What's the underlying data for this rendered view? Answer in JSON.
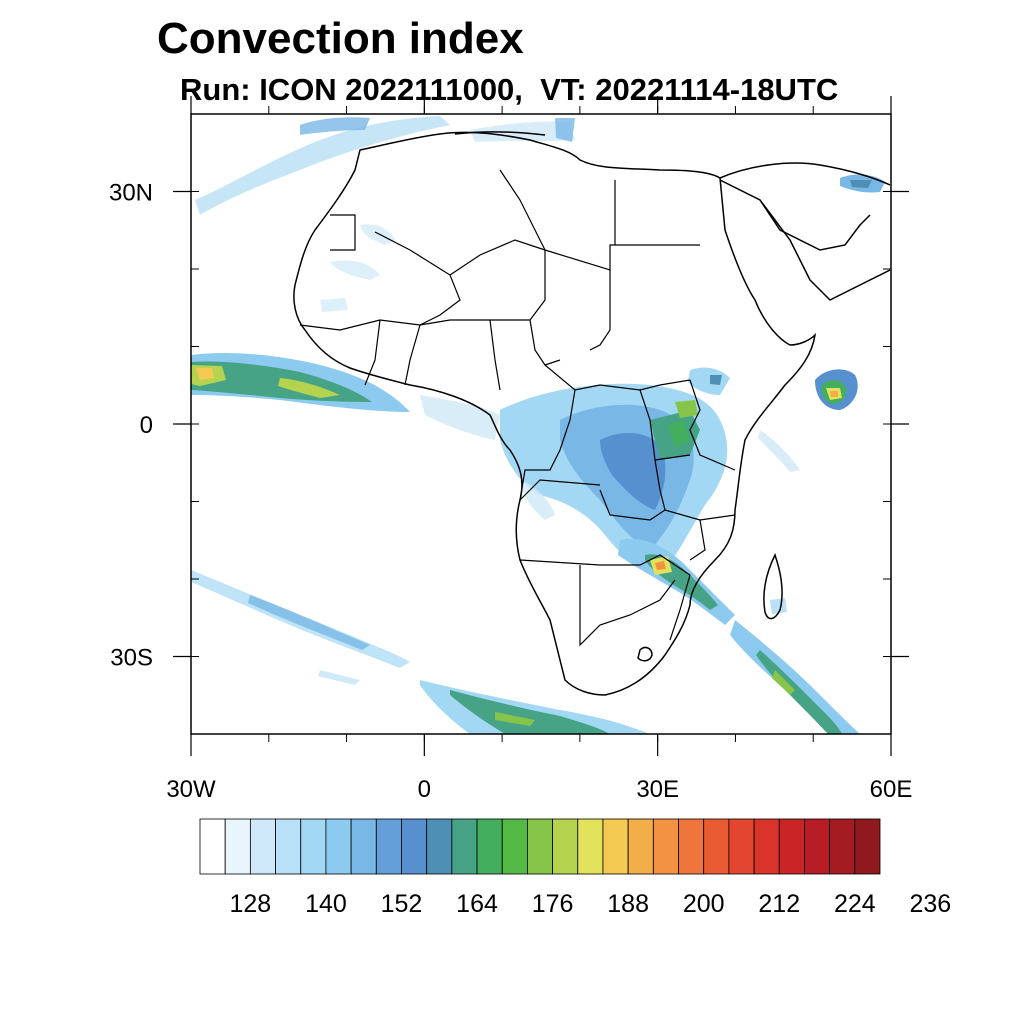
{
  "title": "Convection index",
  "subtitle": "Run: ICON 2022111000,  VT: 20221114-18UTC",
  "map": {
    "region": "Africa",
    "lon_range": [
      -30,
      60
    ],
    "lat_range": [
      -40,
      40
    ],
    "lat_ticks": [
      {
        "value": 30,
        "label": "30N"
      },
      {
        "value": 0,
        "label": "0"
      },
      {
        "value": -30,
        "label": "30S"
      }
    ],
    "lon_ticks": [
      {
        "value": -30,
        "label": "30W"
      },
      {
        "value": 0,
        "label": "0"
      },
      {
        "value": 30,
        "label": "30E"
      },
      {
        "value": 60,
        "label": "60E"
      }
    ]
  },
  "colorbar": {
    "colors": [
      "#ffffff",
      "#e9f5fc",
      "#cfe9f8",
      "#b8e0f6",
      "#a3d8f4",
      "#8ccbef",
      "#79b8e6",
      "#649fda",
      "#5790ce",
      "#4d8fb5",
      "#46a386",
      "#43ae5e",
      "#55b946",
      "#86c549",
      "#b5d34f",
      "#e2e25a",
      "#f4c952",
      "#f3ad49",
      "#f39242",
      "#ef763b",
      "#e95c33",
      "#e2462e",
      "#d9342b",
      "#c92527",
      "#b71c25",
      "#a51b22",
      "#8e1a1f"
    ],
    "labels": [
      "128",
      "140",
      "152",
      "164",
      "176",
      "188",
      "200",
      "212",
      "224",
      "236"
    ]
  }
}
